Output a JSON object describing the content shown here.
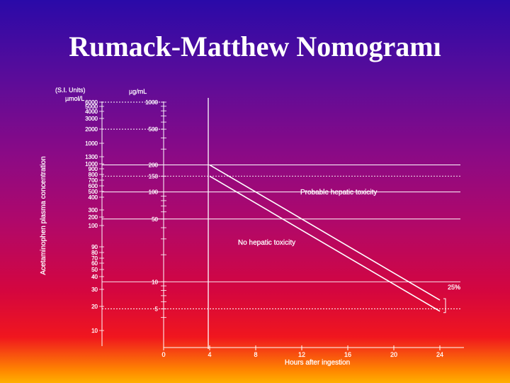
{
  "slide": {
    "title": "Rumack-Matthew Nomogramı"
  },
  "chart_data": {
    "type": "line",
    "title": "",
    "xlabel": "Hours after ingestion",
    "ylabel": "Acetaminophen plasma concentration",
    "x_ticks": [
      0,
      4,
      8,
      12,
      16,
      20,
      24
    ],
    "xlim": [
      0,
      25
    ],
    "y_scale": "log",
    "y_unit": "µg/mL",
    "y_unit_si_header": "(S.I. Units)",
    "y_unit_si": "µmol/L",
    "ylim": [
      3.5,
      1000
    ],
    "y_ticks": [
      1000,
      500,
      200,
      150,
      100,
      50,
      10,
      5
    ],
    "si_ticks": [
      "6000",
      "5000",
      "4000",
      "3000",
      "2000",
      "1000",
      "1300",
      "1000",
      "900",
      "800",
      "700",
      "600",
      "500",
      "400",
      "300",
      "200",
      "100",
      "90",
      "80",
      "70",
      "60",
      "50",
      "40",
      "30",
      "20",
      "10"
    ],
    "series": [
      {
        "name": "",
        "points": [
          [
            4,
            200
          ],
          [
            24,
            6.25
          ]
        ]
      },
      {
        "name": "",
        "points": [
          [
            4,
            150
          ],
          [
            24,
            4.7
          ]
        ]
      }
    ],
    "annotations": {
      "upper_region": "Probable hepatic toxicity",
      "lower_region": "No hepatic toxicity",
      "bracket": "25%"
    },
    "grid": true
  }
}
